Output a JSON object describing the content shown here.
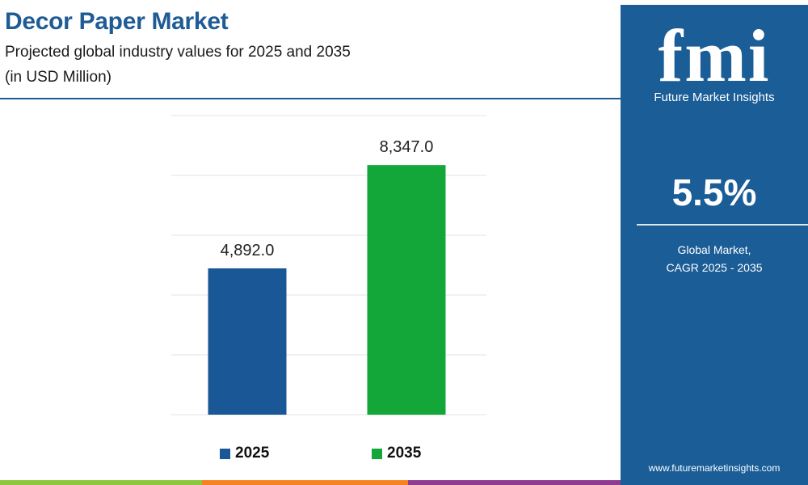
{
  "header": {
    "title": "Decor Paper Market",
    "subtitle": "Projected global industry values for 2025 and 2035",
    "unit": "(in USD Million)"
  },
  "chart_data": {
    "type": "bar",
    "categories": [
      "2025",
      "2035"
    ],
    "values": [
      4892.0,
      8347.0
    ],
    "value_labels": [
      "4,892.0",
      "8,347.0"
    ],
    "colors": [
      "#1a5797",
      "#13a73a"
    ],
    "ylim": [
      0,
      10000
    ],
    "grid": true,
    "legend": "bottom",
    "legend_entries": [
      "2025",
      "2035"
    ]
  },
  "side_panel": {
    "logo_text": "fmi",
    "logo_caption": "Future Market Insights",
    "cagr_value": "5.5%",
    "cagr_line1": "Global Market,",
    "cagr_line2": "CAGR 2025 - 2035",
    "website": "www.futuremarketinsights.com",
    "background_color": "#1a5d97"
  },
  "footer_colors": [
    "#8dc63f",
    "#f58220",
    "#8e3b8f"
  ]
}
